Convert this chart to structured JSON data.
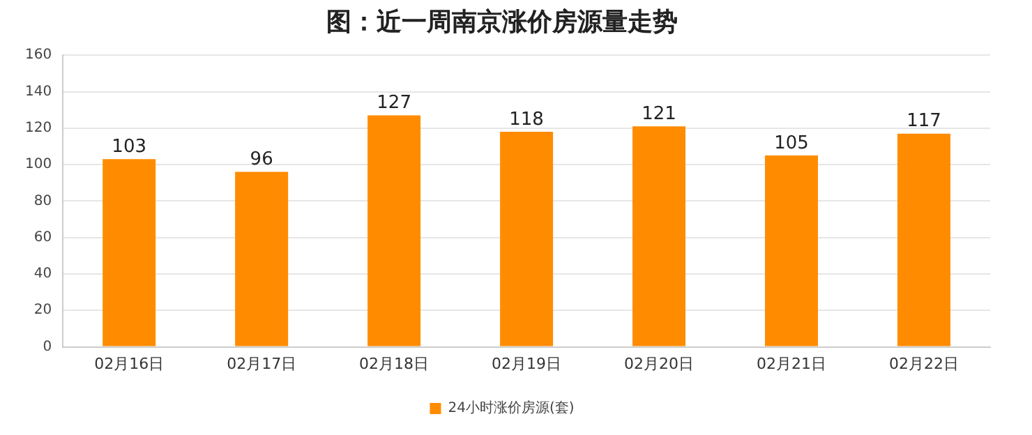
{
  "chart_data": {
    "type": "bar",
    "title": "图：近一周南京涨价房源量走势",
    "categories": [
      "02月16日",
      "02月17日",
      "02月18日",
      "02月19日",
      "02月20日",
      "02月21日",
      "02月22日"
    ],
    "series": [
      {
        "name": "24小时涨价房源(套)",
        "color": "#ff8c00",
        "values": [
          103,
          96,
          127,
          118,
          121,
          105,
          117
        ]
      }
    ],
    "ylim": [
      0,
      160
    ],
    "yticks": [
      0,
      20,
      40,
      60,
      80,
      100,
      120,
      140,
      160
    ],
    "grid": "y",
    "legend": "bottom",
    "data_labels": true
  }
}
